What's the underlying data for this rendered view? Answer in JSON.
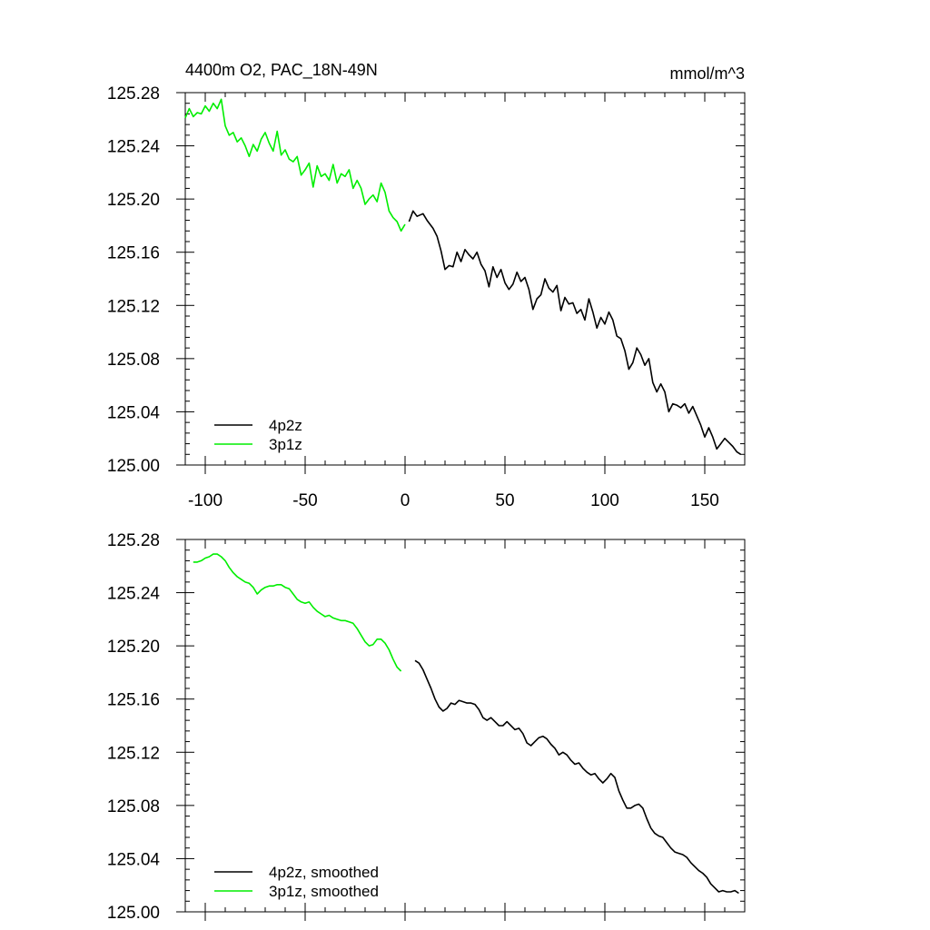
{
  "colors": {
    "line_4p2z": "#000000",
    "line_3p1z": "#00ee00",
    "axis": "#000000"
  },
  "chart_data": [
    {
      "type": "line",
      "title_left": "4400m O2, PAC_18N-49N",
      "title_right": "mmol/m^3",
      "xlim": [
        -110,
        170
      ],
      "ylim": [
        125.0,
        125.28
      ],
      "xticks": [
        -100,
        -50,
        0,
        50,
        100,
        150
      ],
      "xtick_labels": [
        "-100",
        "-50",
        "0",
        "50",
        "100",
        "150"
      ],
      "yticks": [
        125.0,
        125.04,
        125.08,
        125.12,
        125.16,
        125.2,
        125.24,
        125.28
      ],
      "ytick_labels": [
        "125.00",
        "125.04",
        "125.08",
        "125.12",
        "125.16",
        "125.20",
        "125.24",
        "125.28"
      ],
      "legend": [
        "4p2z",
        "3p1z"
      ],
      "legend_position": "bottom-left",
      "series": [
        {
          "name": "4p2z",
          "color": "#000000",
          "x": [
            2,
            4,
            6,
            9,
            11,
            14,
            16,
            18,
            20,
            22,
            24,
            26,
            28,
            30,
            32,
            34,
            36,
            38,
            40,
            42,
            44,
            46,
            48,
            50,
            52,
            54,
            56,
            58,
            60,
            62,
            64,
            66,
            68,
            70,
            72,
            74,
            76,
            78,
            80,
            82,
            84,
            86,
            88,
            90,
            92,
            94,
            96,
            98,
            100,
            102,
            104,
            106,
            108,
            110,
            112,
            114,
            116,
            118,
            120,
            122,
            124,
            126,
            128,
            130,
            132,
            134,
            136,
            138,
            140,
            142,
            144,
            146,
            148,
            150,
            152,
            154,
            156,
            158,
            160,
            162,
            164,
            166,
            168
          ],
          "y": [
            125.183,
            125.191,
            125.187,
            125.189,
            125.184,
            125.178,
            125.172,
            125.161,
            125.147,
            125.15,
            125.149,
            125.16,
            125.153,
            125.162,
            125.158,
            125.155,
            125.16,
            125.151,
            125.146,
            125.134,
            125.149,
            125.141,
            125.147,
            125.137,
            125.132,
            125.136,
            125.145,
            125.138,
            125.141,
            125.132,
            125.117,
            125.125,
            125.128,
            125.14,
            125.133,
            125.13,
            125.135,
            125.116,
            125.126,
            125.121,
            125.122,
            125.114,
            125.117,
            125.109,
            125.125,
            125.115,
            125.103,
            125.111,
            125.106,
            125.115,
            125.109,
            125.097,
            125.095,
            125.086,
            125.072,
            125.077,
            125.088,
            125.083,
            125.075,
            125.08,
            125.062,
            125.055,
            125.061,
            125.055,
            125.04,
            125.046,
            125.045,
            125.043,
            125.046,
            125.039,
            125.044,
            125.037,
            125.03,
            125.021,
            125.028,
            125.021,
            125.012,
            125.016,
            125.02,
            125.017,
            125.014,
            125.01,
            125.008
          ]
        },
        {
          "name": "3p1z",
          "color": "#00ee00",
          "x": [
            -110,
            -108,
            -106,
            -104,
            -102,
            -100,
            -98,
            -96,
            -94,
            -92,
            -90,
            -88,
            -86,
            -84,
            -82,
            -80,
            -78,
            -76,
            -74,
            -72,
            -70,
            -68,
            -66,
            -64,
            -62,
            -60,
            -58,
            -56,
            -54,
            -52,
            -50,
            -48,
            -46,
            -44,
            -42,
            -40,
            -38,
            -36,
            -34,
            -32,
            -30,
            -28,
            -26,
            -24,
            -22,
            -20,
            -18,
            -16,
            -14,
            -12,
            -10,
            -8,
            -6,
            -4,
            -2,
            0
          ],
          "y": [
            125.261,
            125.268,
            125.262,
            125.265,
            125.264,
            125.27,
            125.266,
            125.272,
            125.268,
            125.275,
            125.255,
            125.248,
            125.25,
            125.243,
            125.246,
            125.24,
            125.232,
            125.241,
            125.236,
            125.245,
            125.25,
            125.242,
            125.236,
            125.251,
            125.233,
            125.237,
            125.23,
            125.228,
            125.232,
            125.218,
            125.222,
            125.227,
            125.209,
            125.225,
            125.217,
            125.219,
            125.214,
            125.226,
            125.212,
            125.219,
            125.217,
            125.222,
            125.208,
            125.214,
            125.208,
            125.196,
            125.2,
            125.203,
            125.198,
            125.212,
            125.205,
            125.191,
            125.186,
            125.183,
            125.176,
            125.181
          ]
        }
      ]
    },
    {
      "type": "line",
      "xlim": [
        -110,
        170
      ],
      "ylim": [
        125.0,
        125.28
      ],
      "xticks": [
        -100,
        -50,
        0,
        50,
        100,
        150
      ],
      "yticks": [
        125.0,
        125.04,
        125.08,
        125.12,
        125.16,
        125.2,
        125.24,
        125.28
      ],
      "ytick_labels": [
        "125.00",
        "125.04",
        "125.08",
        "125.12",
        "125.16",
        "125.20",
        "125.24",
        "125.28"
      ],
      "legend": [
        "4p2z, smoothed",
        "3p1z, smoothed"
      ],
      "legend_position": "bottom-left",
      "series": [
        {
          "name": "4p2z, smoothed",
          "color": "#000000",
          "x": [
            5,
            7,
            9,
            11,
            13,
            15,
            17,
            19,
            21,
            23,
            25,
            27,
            29,
            31,
            33,
            35,
            37,
            39,
            41,
            43,
            45,
            47,
            49,
            51,
            53,
            55,
            57,
            59,
            61,
            63,
            65,
            67,
            69,
            71,
            73,
            75,
            77,
            79,
            81,
            83,
            85,
            87,
            89,
            91,
            93,
            95,
            97,
            99,
            101,
            103,
            105,
            107,
            109,
            111,
            113,
            115,
            117,
            119,
            121,
            123,
            125,
            127,
            129,
            131,
            133,
            135,
            137,
            139,
            141,
            143,
            145,
            147,
            149,
            151,
            153,
            155,
            157,
            159,
            161,
            163,
            165,
            167
          ],
          "y": [
            125.189,
            125.187,
            125.182,
            125.175,
            125.168,
            125.16,
            125.154,
            125.151,
            125.153,
            125.157,
            125.156,
            125.159,
            125.158,
            125.157,
            125.157,
            125.156,
            125.152,
            125.146,
            125.144,
            125.146,
            125.143,
            125.14,
            125.14,
            125.143,
            125.14,
            125.137,
            125.138,
            125.134,
            125.127,
            125.125,
            125.128,
            125.131,
            125.132,
            125.13,
            125.126,
            125.123,
            125.118,
            125.12,
            125.118,
            125.114,
            125.111,
            125.112,
            125.108,
            125.105,
            125.103,
            125.104,
            125.1,
            125.097,
            125.1,
            125.104,
            125.101,
            125.091,
            125.084,
            125.078,
            125.078,
            125.08,
            125.081,
            125.078,
            125.07,
            125.063,
            125.059,
            125.057,
            125.056,
            125.052,
            125.048,
            125.045,
            125.044,
            125.043,
            125.041,
            125.037,
            125.034,
            125.031,
            125.029,
            125.026,
            125.021,
            125.018,
            125.015,
            125.016,
            125.015,
            125.015,
            125.016,
            125.014
          ]
        },
        {
          "name": "3p1z, smoothed",
          "color": "#00ee00",
          "x": [
            -106,
            -104,
            -102,
            -100,
            -98,
            -96,
            -94,
            -92,
            -90,
            -88,
            -86,
            -84,
            -82,
            -80,
            -78,
            -76,
            -74,
            -72,
            -70,
            -68,
            -66,
            -64,
            -62,
            -60,
            -58,
            -56,
            -54,
            -52,
            -50,
            -48,
            -46,
            -44,
            -42,
            -40,
            -38,
            -36,
            -34,
            -32,
            -30,
            -28,
            -26,
            -24,
            -22,
            -20,
            -18,
            -16,
            -14,
            -12,
            -10,
            -8,
            -6,
            -4,
            -2
          ],
          "y": [
            125.263,
            125.263,
            125.264,
            125.266,
            125.267,
            125.269,
            125.269,
            125.267,
            125.264,
            125.259,
            125.255,
            125.252,
            125.25,
            125.248,
            125.247,
            125.244,
            125.239,
            125.242,
            125.244,
            125.245,
            125.245,
            125.246,
            125.246,
            125.244,
            125.243,
            125.239,
            125.235,
            125.233,
            125.232,
            125.233,
            125.229,
            125.226,
            125.224,
            125.222,
            125.223,
            125.221,
            125.22,
            125.219,
            125.219,
            125.218,
            125.217,
            125.213,
            125.208,
            125.203,
            125.2,
            125.201,
            125.205,
            125.205,
            125.202,
            125.197,
            125.19,
            125.184,
            125.181
          ]
        }
      ]
    }
  ]
}
